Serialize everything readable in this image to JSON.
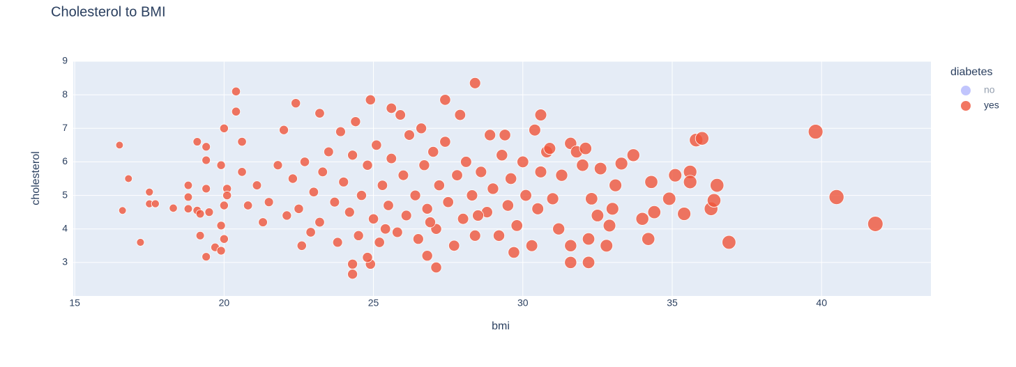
{
  "chart_data": {
    "type": "scatter",
    "title": "Cholesterol to BMI",
    "x_label": "bmi",
    "y_label": "cholesterol",
    "legend_title": "diabetes",
    "xlim": [
      14.95,
      43.66
    ],
    "ylim": [
      2,
      9
    ],
    "xticks": [
      15,
      20,
      25,
      30,
      35,
      40
    ],
    "yticks": [
      3,
      4,
      5,
      6,
      7,
      8,
      9
    ],
    "grid": true,
    "legend": "right",
    "series": [
      {
        "name": "no",
        "color": "#636efa",
        "visible": "legendonly",
        "x": [],
        "y": []
      },
      {
        "name": "yes",
        "color": "#EF553B",
        "visible": "true",
        "x": [
          16.5,
          16.6,
          16.8,
          17.2,
          17.5,
          17.5,
          17.7,
          18.3,
          18.8,
          18.8,
          18.8,
          19.1,
          19.1,
          19.2,
          19.2,
          19.4,
          19.4,
          19.4,
          19.4,
          19.5,
          19.7,
          19.9,
          19.9,
          19.9,
          20,
          20,
          20,
          20.1,
          20.1,
          20.4,
          20.4,
          20.6,
          20.6,
          24.3,
          24.3,
          24.9,
          24.8,
          27.1,
          26.8,
          28.4,
          27.4,
          24.9,
          25.6,
          22.4,
          23.2,
          30.6,
          30.4,
          31.6,
          31.8,
          32.1,
          32.6,
          33.1,
          33.3,
          33.7,
          34.0,
          34.2,
          34.3,
          34.4,
          34.9,
          35.1,
          35.4,
          35.6,
          35.6,
          35.8,
          36,
          36.3,
          36.4,
          36.5,
          36.9,
          39.8,
          40.5,
          41.8,
          31.6,
          32.2,
          31.6,
          32.8,
          32.2,
          21.5,
          21.8,
          22,
          22.1,
          22.3,
          22.5,
          22.7,
          22.9,
          23,
          23.2,
          23.3,
          23.5,
          23.7,
          23.8,
          24,
          24.2,
          24.3,
          24.5,
          24.6,
          24.8,
          25,
          25.1,
          25.2,
          25.3,
          25.5,
          25.6,
          25.8,
          26,
          26.1,
          26.2,
          26.4,
          26.5,
          26.7,
          26.8,
          27,
          27.1,
          27.2,
          27.4,
          27.5,
          27.7,
          27.8,
          28,
          28.1,
          28.3,
          28.4,
          28.6,
          28.8,
          28.9,
          29,
          29.2,
          29.3,
          29.5,
          29.6,
          29.8,
          30,
          30.1,
          30.3,
          30.5,
          30.6,
          30.8,
          31,
          31.2,
          31.3,
          21.3,
          21.1,
          20.8,
          22.6,
          23.9,
          25.9,
          26.6,
          27.9,
          29.4,
          30.9,
          24.4,
          25.4,
          26.9,
          28.5,
          29.7,
          32,
          32.3,
          32.5,
          32.9,
          33
        ],
        "y": [
          6.5,
          4.55,
          5.5,
          3.6,
          5.1,
          4.75,
          4.75,
          4.62,
          5.3,
          4.95,
          4.6,
          6.6,
          4.55,
          4.45,
          3.8,
          6.45,
          6.05,
          5.2,
          3.17,
          4.5,
          3.45,
          3.35,
          4.1,
          5.9,
          7,
          4.7,
          3.7,
          5.2,
          5.0,
          8.1,
          7.5,
          6.6,
          5.7,
          2.65,
          2.95,
          2.95,
          3.15,
          2.85,
          3.2,
          8.35,
          7.85,
          7.85,
          7.6,
          7.75,
          7.45,
          7.4,
          6.95,
          6.55,
          6.3,
          6.4,
          5.8,
          5.3,
          5.95,
          6.2,
          4.3,
          3.7,
          5.4,
          4.5,
          4.9,
          5.6,
          4.45,
          5.7,
          5.4,
          6.65,
          6.7,
          4.6,
          4.85,
          5.3,
          3.6,
          6.9,
          4.95,
          4.15,
          3.0,
          3.0,
          3.5,
          3.5,
          3.7,
          4.8,
          5.9,
          6.95,
          4.4,
          5.5,
          4.6,
          6.0,
          3.9,
          5.1,
          4.2,
          5.7,
          6.3,
          4.8,
          3.6,
          5.4,
          4.5,
          6.2,
          3.8,
          5.0,
          5.9,
          4.3,
          6.5,
          3.6,
          5.3,
          4.7,
          6.1,
          3.9,
          5.6,
          4.4,
          6.8,
          5.0,
          3.7,
          5.9,
          4.6,
          6.3,
          4.0,
          5.3,
          6.6,
          4.8,
          3.5,
          5.6,
          4.3,
          6.0,
          5.0,
          3.8,
          5.7,
          4.5,
          6.8,
          5.2,
          3.8,
          6.2,
          4.7,
          5.5,
          4.1,
          6.0,
          5.0,
          3.5,
          4.6,
          5.7,
          6.3,
          4.9,
          4.0,
          5.6,
          4.2,
          5.3,
          4.7,
          3.5,
          6.9,
          7.4,
          7.0,
          7.4,
          6.8,
          6.4,
          7.2,
          4.0,
          4.2,
          4.4,
          3.3,
          5.9,
          4.9,
          4.4,
          4.1,
          4.6
        ]
      }
    ]
  }
}
